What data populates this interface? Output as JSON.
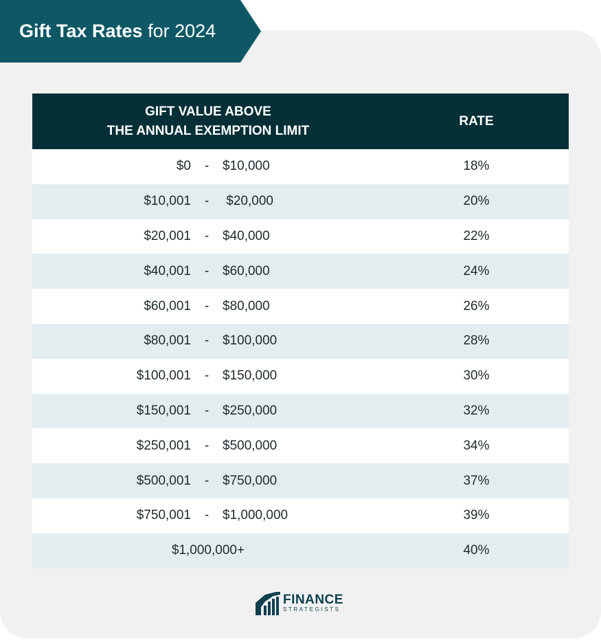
{
  "title": {
    "bold": "Gift Tax Rates",
    "regular": " for 2024"
  },
  "colors": {
    "banner": "#0e5866",
    "header": "#052f37",
    "row_alt": "#e3edef",
    "card": "#f1f1f1"
  },
  "table": {
    "header_range": "GIFT VALUE ABOVE\nTHE ANNUAL EXEMPTION LIMIT",
    "header_rate": "RATE",
    "rows": [
      {
        "from": "$0",
        "to": "$10,000",
        "rate": "18%"
      },
      {
        "from": "$10,001",
        "to": " $20,000",
        "rate": "20%"
      },
      {
        "from": "$20,001",
        "to": "$40,000",
        "rate": "22%"
      },
      {
        "from": "$40,001",
        "to": "$60,000",
        "rate": "24%"
      },
      {
        "from": "$60,001",
        "to": "$80,000",
        "rate": "26%"
      },
      {
        "from": "$80,001",
        "to": "$100,000",
        "rate": "28%"
      },
      {
        "from": "$100,001",
        "to": "$150,000",
        "rate": "30%"
      },
      {
        "from": "$150,001",
        "to": "$250,000",
        "rate": "32%"
      },
      {
        "from": "$250,001",
        "to": "$500,000",
        "rate": "34%"
      },
      {
        "from": "$500,001",
        "to": "$750,000",
        "rate": "37%"
      },
      {
        "from": "$750,001",
        "to": "$1,000,000",
        "rate": "39%"
      }
    ],
    "last_row": {
      "range": "$1,000,000+",
      "rate": "40%"
    },
    "dash": "-"
  },
  "logo": {
    "main": "FINANCE",
    "sub": "STRATEGISTS",
    "icon": "finance-strategists-logo-icon"
  }
}
